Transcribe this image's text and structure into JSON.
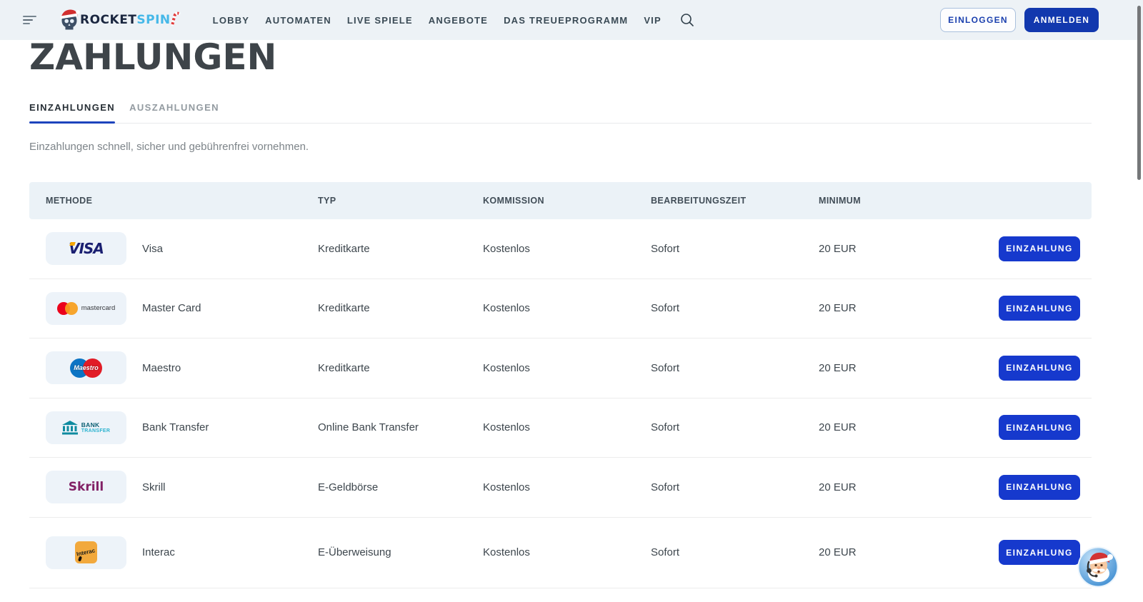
{
  "brand": {
    "name_primary": "ROCKET",
    "name_secondary": "SPIN"
  },
  "nav": {
    "items": [
      "LOBBY",
      "AUTOMATEN",
      "LIVE SPIELE",
      "ANGEBOTE",
      "DAS TREUEPROGRAMM",
      "VIP"
    ]
  },
  "auth": {
    "login_label": "EINLOGGEN",
    "signup_label": "ANMELDEN"
  },
  "page": {
    "title": "ZAHLUNGEN",
    "tabs": [
      {
        "label": "EINZAHLUNGEN",
        "active": true
      },
      {
        "label": "AUSZAHLUNGEN",
        "active": false
      }
    ],
    "subtitle": "Einzahlungen schnell, sicher und gebührenfrei vornehmen."
  },
  "table": {
    "columns": [
      "METHODE",
      "TYP",
      "KOMMISSION",
      "BEARBEITUNGSZEIT",
      "MINIMUM"
    ],
    "action_label": "EINZAHLUNG",
    "logos": {
      "visa": {
        "word": "VISA"
      },
      "mastercard": {
        "word": "mastercard"
      },
      "maestro": {
        "word": "Maestro"
      },
      "bank": {
        "word_top": "BANK",
        "word_bottom": "TRANSFER"
      },
      "skrill": {
        "word": "Skrill"
      },
      "interac": {
        "word": "Interac"
      }
    },
    "rows": [
      {
        "logo": "visa",
        "method": "Visa",
        "type": "Kreditkarte",
        "commission": "Kostenlos",
        "processing": "Sofort",
        "minimum": "20 EUR"
      },
      {
        "logo": "mastercard",
        "method": "Master Card",
        "type": "Kreditkarte",
        "commission": "Kostenlos",
        "processing": "Sofort",
        "minimum": "20 EUR"
      },
      {
        "logo": "maestro",
        "method": "Maestro",
        "type": "Kreditkarte",
        "commission": "Kostenlos",
        "processing": "Sofort",
        "minimum": "20 EUR"
      },
      {
        "logo": "bank",
        "method": "Bank Transfer",
        "type": "Online Bank Transfer",
        "commission": "Kostenlos",
        "processing": "Sofort",
        "minimum": "20 EUR"
      },
      {
        "logo": "skrill",
        "method": "Skrill",
        "type": "E-Geldbörse",
        "commission": "Kostenlos",
        "processing": "Sofort",
        "minimum": "20 EUR"
      },
      {
        "logo": "interac",
        "method": "Interac",
        "type": "E-Überweisung",
        "commission": "Kostenlos",
        "processing": "Sofort",
        "minimum": "20 EUR"
      }
    ]
  },
  "colors": {
    "topbar_bg": "#edf2f6",
    "primary_blue_signup": "#1238ae",
    "primary_blue_action": "#1639cd",
    "tab_underline_blue": "#1d44bd",
    "table_header_bg": "#ebf2f7",
    "tile_bg": "#edf3f9",
    "title_text": "#3e4449",
    "body_text": "#3d464d",
    "muted_text": "#7d8489"
  }
}
